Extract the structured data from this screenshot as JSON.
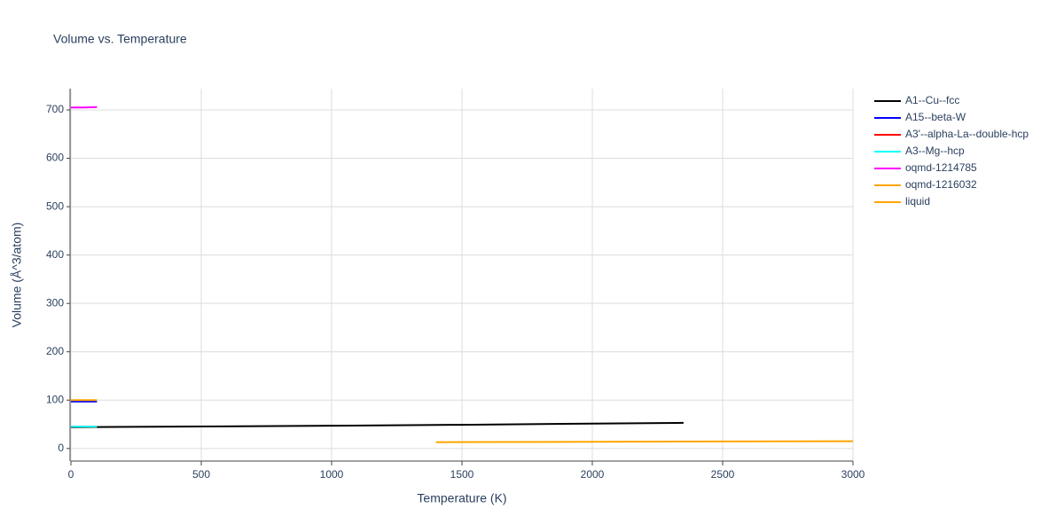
{
  "chart_data": {
    "type": "line",
    "title": "Volume vs. Temperature",
    "x_label": "Temperature (K)",
    "y_label": "Volume (Å^3/atom)",
    "xlim": [
      0,
      3000
    ],
    "ylim": [
      -26,
      744
    ],
    "xticks": [
      0,
      500,
      1000,
      1500,
      2000,
      2500,
      3000
    ],
    "yticks": [
      0,
      100,
      200,
      300,
      400,
      500,
      600,
      700
    ],
    "grid": true,
    "legend": "right",
    "series": [
      {
        "name": "A1--Cu--fcc",
        "color": "#000000",
        "x": [
          0,
          500,
          1000,
          1500,
          2000,
          2350
        ],
        "values": [
          44,
          45.5,
          47,
          49,
          51.5,
          53
        ]
      },
      {
        "name": "A15--beta-W",
        "color": "#0000ff",
        "x": [
          0,
          50,
          100
        ],
        "values": [
          97,
          97,
          97
        ]
      },
      {
        "name": "A3'--alpha-La--double-hcp",
        "color": "#ff0000",
        "x": [
          0,
          50,
          100
        ],
        "values": [
          45,
          45,
          45
        ]
      },
      {
        "name": "A3--Mg--hcp",
        "color": "#00ffff",
        "x": [
          0,
          50,
          100
        ],
        "values": [
          45,
          45,
          45
        ]
      },
      {
        "name": "oqmd-1214785",
        "color": "#ff00ff",
        "x": [
          0,
          50,
          100
        ],
        "values": [
          705,
          705,
          706
        ]
      },
      {
        "name": "oqmd-1216032",
        "color": "#ffa500",
        "x": [
          0,
          50,
          100
        ],
        "values": [
          100,
          100,
          100
        ]
      },
      {
        "name": "liquid",
        "color": "#ffa500",
        "x": [
          1400,
          2000,
          2500,
          3000
        ],
        "values": [
          13,
          13.8,
          14.5,
          15
        ]
      }
    ]
  }
}
